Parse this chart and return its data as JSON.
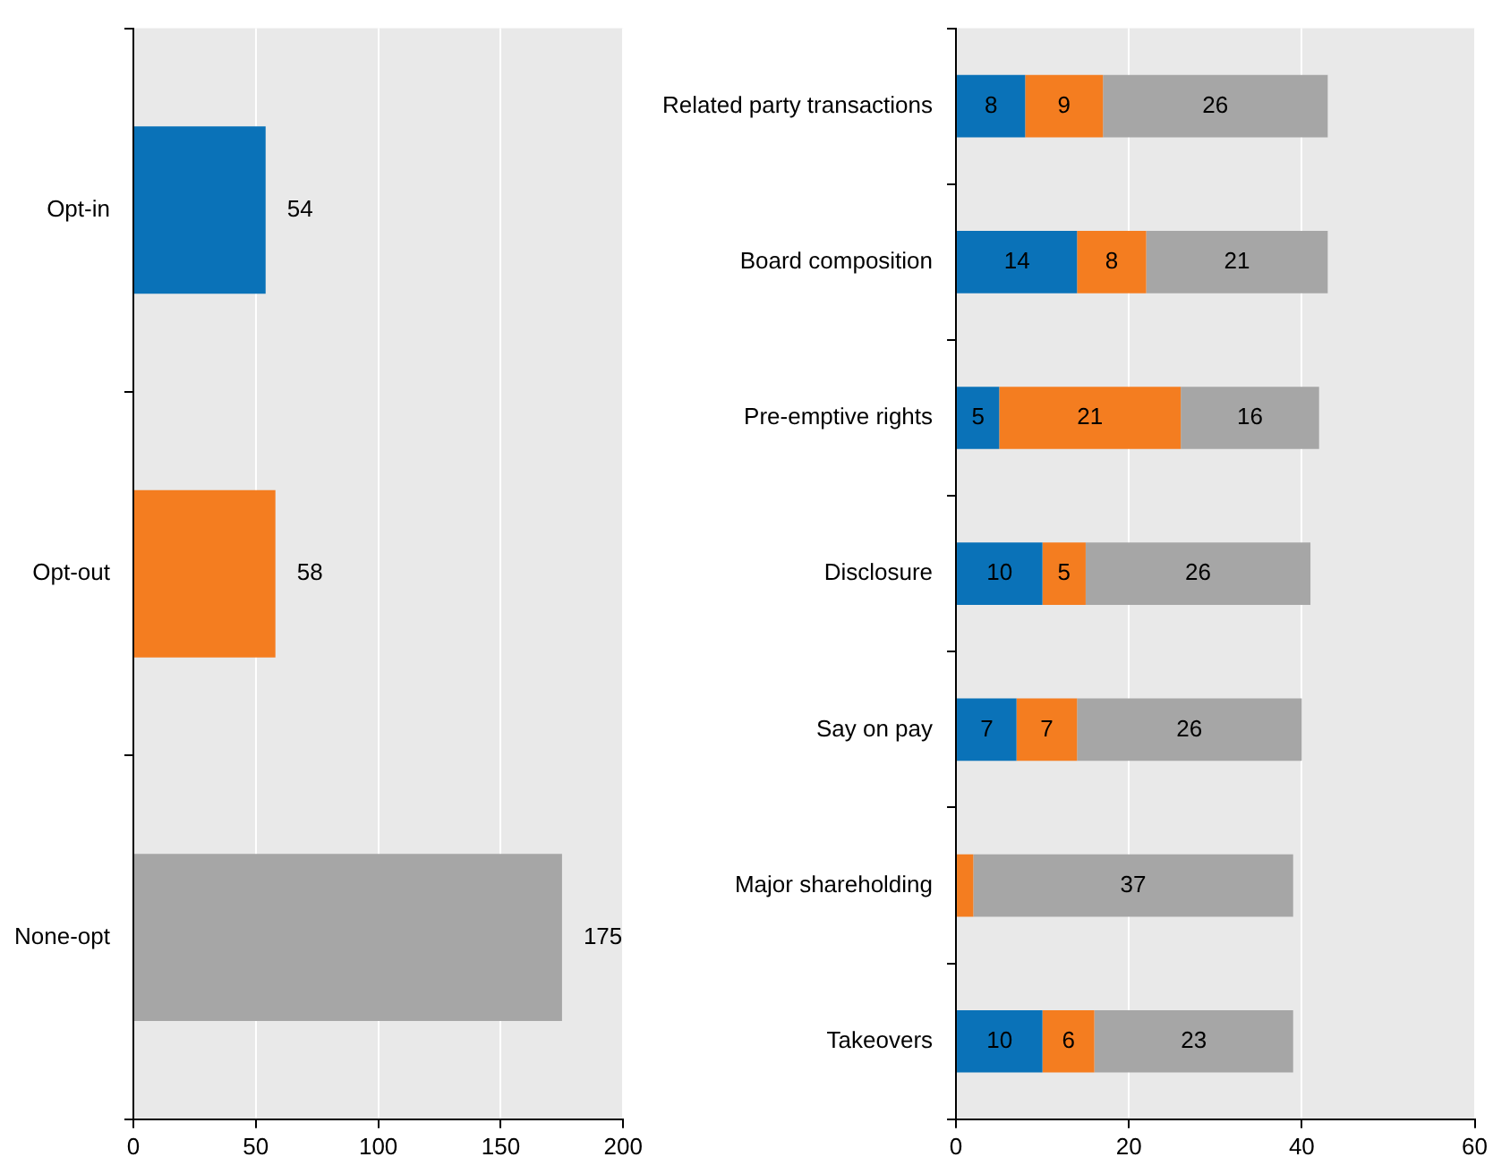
{
  "chart_data": [
    {
      "type": "bar",
      "orientation": "horizontal",
      "categories": [
        "Opt-in",
        "Opt-out",
        "None-opt"
      ],
      "values": [
        54,
        58,
        175
      ],
      "colors": [
        "#0a72b8",
        "#f47d20",
        "#a6a6a6"
      ],
      "xlim": [
        0,
        200
      ],
      "xticks": [
        0,
        50,
        100,
        150,
        200
      ],
      "grid": "x",
      "data_labels": true
    },
    {
      "type": "bar",
      "orientation": "horizontal",
      "stacked": true,
      "categories": [
        "Related party transactions",
        "Board composition",
        "Pre-emptive rights",
        "Disclosure",
        "Say on pay",
        "Major shareholding",
        "Takeovers"
      ],
      "series": [
        {
          "color": "#0a72b8",
          "values": [
            8,
            14,
            5,
            10,
            7,
            null,
            10
          ],
          "value_labels": [
            "8",
            "14",
            "5",
            "10",
            "7",
            null,
            "10"
          ]
        },
        {
          "color": "#f47d20",
          "values": [
            9,
            8,
            21,
            5,
            7,
            2,
            6
          ],
          "value_labels": [
            "9",
            "8",
            "21",
            "5",
            "7",
            null,
            "6"
          ]
        },
        {
          "color": "#a6a6a6",
          "values": [
            26,
            21,
            16,
            26,
            26,
            37,
            23
          ],
          "value_labels": [
            "26",
            "21",
            "16",
            "26",
            "26",
            "37",
            "23"
          ]
        }
      ],
      "xlim": [
        0,
        60
      ],
      "xticks": [
        0,
        20,
        40,
        60
      ],
      "grid": "x"
    }
  ]
}
